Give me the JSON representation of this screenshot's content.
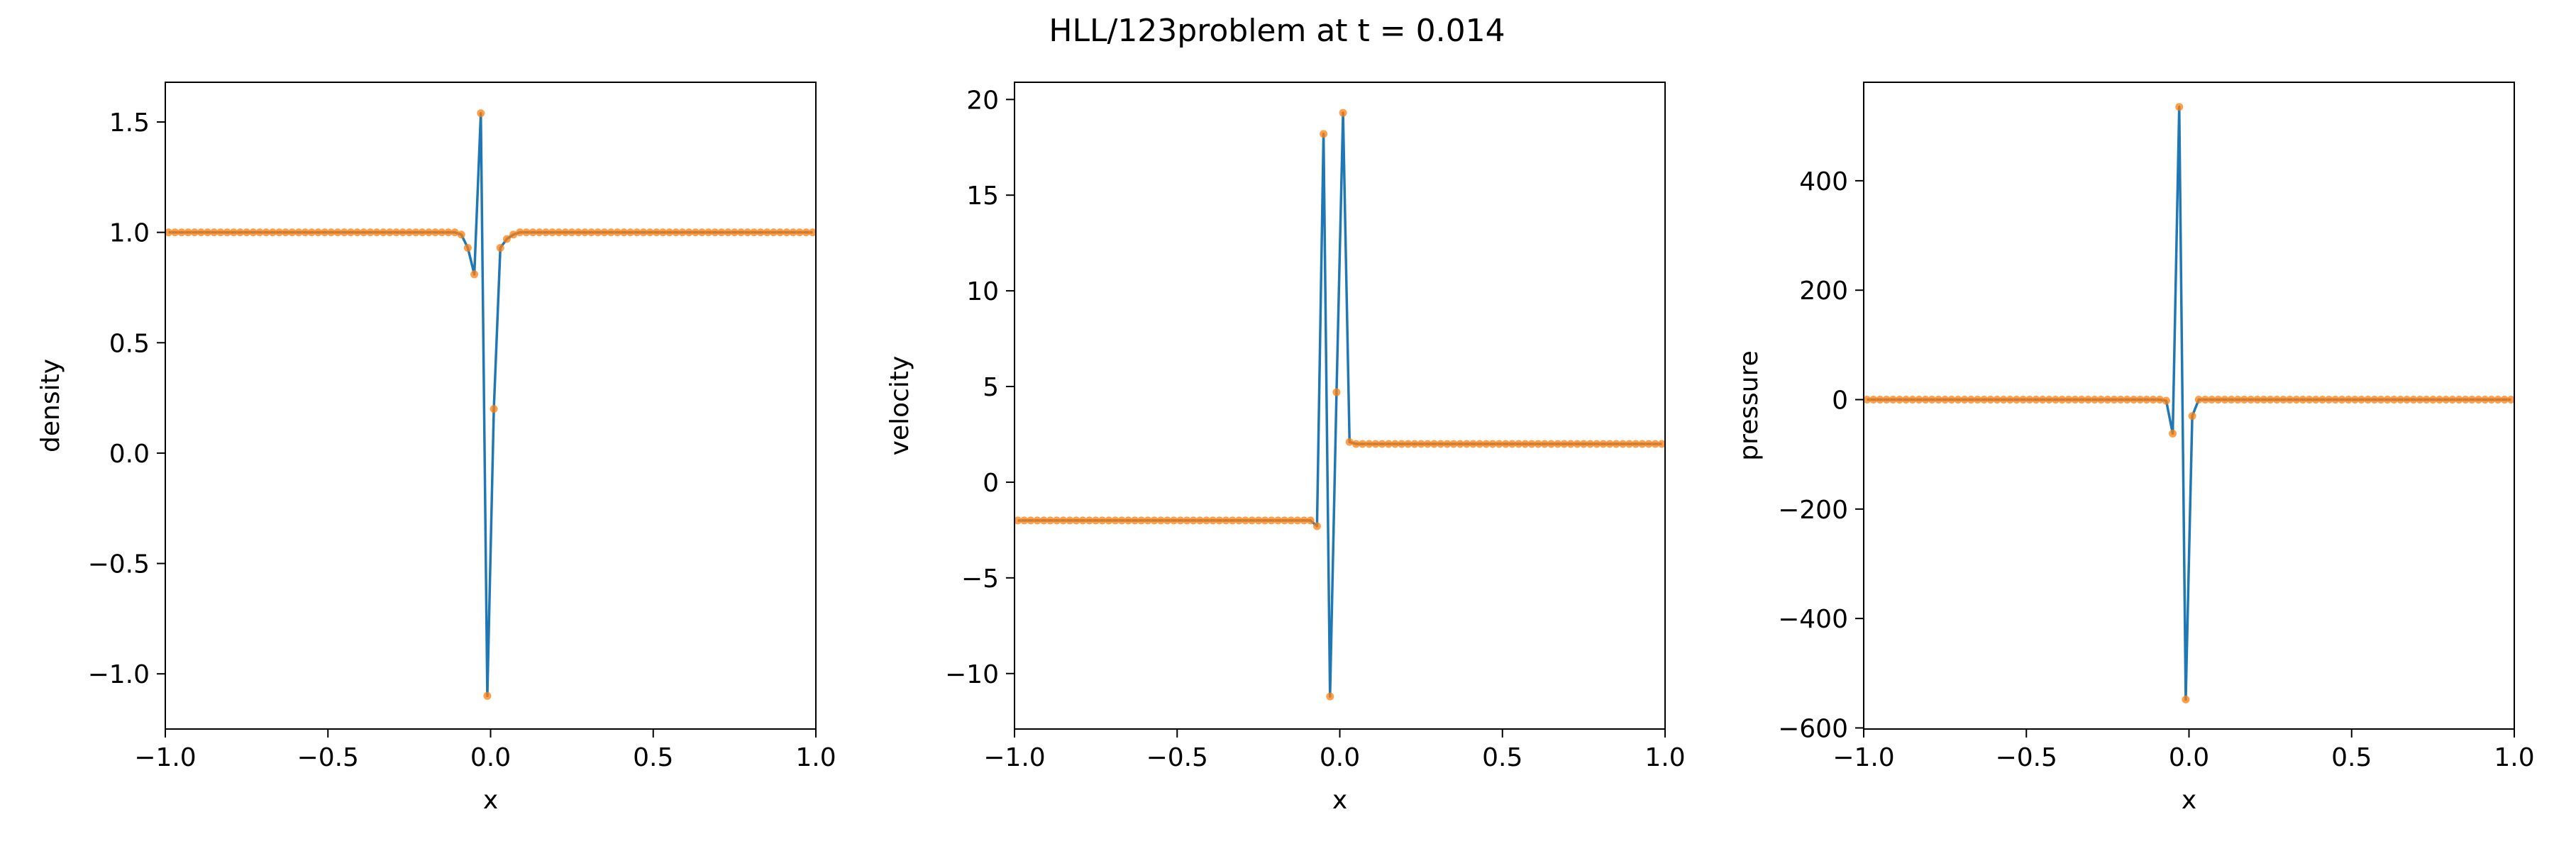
{
  "title": "HLL/123problem at t = 0.014",
  "colors": {
    "line": "#1f77b4",
    "marker": "#ff7f0e",
    "axes": "#000000",
    "background": "#ffffff"
  },
  "chart_data": [
    {
      "type": "line",
      "xlabel": "x",
      "ylabel": "density",
      "xlim": [
        -1.0,
        1.0
      ],
      "ylim": [
        -1.25,
        1.68
      ],
      "xticks": [
        -1.0,
        -0.5,
        0.0,
        0.5,
        1.0
      ],
      "xtick_labels": [
        "−1.0",
        "−0.5",
        "0.0",
        "0.5",
        "1.0"
      ],
      "yticks": [
        -1.0,
        -0.5,
        0.0,
        0.5,
        1.0,
        1.5
      ],
      "ytick_labels": [
        "−1.0",
        "−0.5",
        "0.0",
        "0.5",
        "1.0",
        "1.5"
      ],
      "grid": false,
      "series": [
        {
          "x": [
            -0.99,
            -0.97,
            -0.95,
            -0.93,
            -0.91,
            -0.89,
            -0.87,
            -0.85,
            -0.83,
            -0.81,
            -0.79,
            -0.77,
            -0.75,
            -0.73,
            -0.71,
            -0.69,
            -0.67,
            -0.65,
            -0.63,
            -0.61,
            -0.59,
            -0.57,
            -0.55,
            -0.53,
            -0.51,
            -0.49,
            -0.47,
            -0.45,
            -0.43,
            -0.41,
            -0.39,
            -0.37,
            -0.35,
            -0.33,
            -0.31,
            -0.29,
            -0.27,
            -0.25,
            -0.23,
            -0.21,
            -0.19,
            -0.17,
            -0.15,
            -0.13,
            -0.11,
            -0.09,
            -0.07,
            -0.05,
            -0.03,
            -0.01,
            0.01,
            0.03,
            0.05,
            0.07,
            0.09,
            0.11,
            0.13,
            0.15,
            0.17,
            0.19,
            0.21,
            0.23,
            0.25,
            0.27,
            0.29,
            0.31,
            0.33,
            0.35,
            0.37,
            0.39,
            0.41,
            0.43,
            0.45,
            0.47,
            0.49,
            0.51,
            0.53,
            0.55,
            0.57,
            0.59,
            0.61,
            0.63,
            0.65,
            0.67,
            0.69,
            0.71,
            0.73,
            0.75,
            0.77,
            0.79,
            0.81,
            0.83,
            0.85,
            0.87,
            0.89,
            0.91,
            0.93,
            0.95,
            0.97,
            0.99
          ],
          "y": [
            1,
            1,
            1,
            1,
            1,
            1,
            1,
            1,
            1,
            1,
            1,
            1,
            1,
            1,
            1,
            1,
            1,
            1,
            1,
            1,
            1,
            1,
            1,
            1,
            1,
            1,
            1,
            1,
            1,
            1,
            1,
            1,
            1,
            1,
            1,
            1,
            1,
            1,
            1,
            1,
            1,
            1,
            1,
            1,
            1,
            0.99,
            0.93,
            0.81,
            1.54,
            -1.1,
            0.2,
            0.93,
            0.97,
            0.99,
            1,
            1,
            1,
            1,
            1,
            1,
            1,
            1,
            1,
            1,
            1,
            1,
            1,
            1,
            1,
            1,
            1,
            1,
            1,
            1,
            1,
            1,
            1,
            1,
            1,
            1,
            1,
            1,
            1,
            1,
            1,
            1,
            1,
            1,
            1,
            1,
            1,
            1,
            1,
            1,
            1,
            1,
            1,
            1,
            1,
            1
          ]
        }
      ]
    },
    {
      "type": "line",
      "xlabel": "x",
      "ylabel": "velocity",
      "xlim": [
        -1.0,
        1.0
      ],
      "ylim": [
        -12.9,
        20.9
      ],
      "xticks": [
        -1.0,
        -0.5,
        0.0,
        0.5,
        1.0
      ],
      "xtick_labels": [
        "−1.0",
        "−0.5",
        "0.0",
        "0.5",
        "1.0"
      ],
      "yticks": [
        -10,
        -5,
        0,
        5,
        10,
        15,
        20
      ],
      "ytick_labels": [
        "−10",
        "−5",
        "0",
        "5",
        "10",
        "15",
        "20"
      ],
      "grid": false,
      "series": [
        {
          "x": [
            -0.99,
            -0.97,
            -0.95,
            -0.93,
            -0.91,
            -0.89,
            -0.87,
            -0.85,
            -0.83,
            -0.81,
            -0.79,
            -0.77,
            -0.75,
            -0.73,
            -0.71,
            -0.69,
            -0.67,
            -0.65,
            -0.63,
            -0.61,
            -0.59,
            -0.57,
            -0.55,
            -0.53,
            -0.51,
            -0.49,
            -0.47,
            -0.45,
            -0.43,
            -0.41,
            -0.39,
            -0.37,
            -0.35,
            -0.33,
            -0.31,
            -0.29,
            -0.27,
            -0.25,
            -0.23,
            -0.21,
            -0.19,
            -0.17,
            -0.15,
            -0.13,
            -0.11,
            -0.09,
            -0.07,
            -0.05,
            -0.03,
            -0.01,
            0.01,
            0.03,
            0.05,
            0.07,
            0.09,
            0.11,
            0.13,
            0.15,
            0.17,
            0.19,
            0.21,
            0.23,
            0.25,
            0.27,
            0.29,
            0.31,
            0.33,
            0.35,
            0.37,
            0.39,
            0.41,
            0.43,
            0.45,
            0.47,
            0.49,
            0.51,
            0.53,
            0.55,
            0.57,
            0.59,
            0.61,
            0.63,
            0.65,
            0.67,
            0.69,
            0.71,
            0.73,
            0.75,
            0.77,
            0.79,
            0.81,
            0.83,
            0.85,
            0.87,
            0.89,
            0.91,
            0.93,
            0.95,
            0.97,
            0.99
          ],
          "y": [
            -2,
            -2,
            -2,
            -2,
            -2,
            -2,
            -2,
            -2,
            -2,
            -2,
            -2,
            -2,
            -2,
            -2,
            -2,
            -2,
            -2,
            -2,
            -2,
            -2,
            -2,
            -2,
            -2,
            -2,
            -2,
            -2,
            -2,
            -2,
            -2,
            -2,
            -2,
            -2,
            -2,
            -2,
            -2,
            -2,
            -2,
            -2,
            -2,
            -2,
            -2,
            -2,
            -2,
            -2,
            -2,
            -2,
            -2.3,
            18.2,
            -11.2,
            4.7,
            19.3,
            2.1,
            2,
            2,
            2,
            2,
            2,
            2,
            2,
            2,
            2,
            2,
            2,
            2,
            2,
            2,
            2,
            2,
            2,
            2,
            2,
            2,
            2,
            2,
            2,
            2,
            2,
            2,
            2,
            2,
            2,
            2,
            2,
            2,
            2,
            2,
            2,
            2,
            2,
            2,
            2,
            2,
            2,
            2,
            2,
            2,
            2,
            2,
            2,
            2
          ]
        }
      ]
    },
    {
      "type": "line",
      "xlabel": "x",
      "ylabel": "pressure",
      "xlim": [
        -1.0,
        1.0
      ],
      "ylim": [
        -602,
        580
      ],
      "xticks": [
        -1.0,
        -0.5,
        0.0,
        0.5,
        1.0
      ],
      "xtick_labels": [
        "−1.0",
        "−0.5",
        "0.0",
        "0.5",
        "1.0"
      ],
      "yticks": [
        -600,
        -400,
        -200,
        0,
        200,
        400
      ],
      "ytick_labels": [
        "−600",
        "−400",
        "−200",
        "0",
        "200",
        "400"
      ],
      "grid": false,
      "series": [
        {
          "x": [
            -0.99,
            -0.97,
            -0.95,
            -0.93,
            -0.91,
            -0.89,
            -0.87,
            -0.85,
            -0.83,
            -0.81,
            -0.79,
            -0.77,
            -0.75,
            -0.73,
            -0.71,
            -0.69,
            -0.67,
            -0.65,
            -0.63,
            -0.61,
            -0.59,
            -0.57,
            -0.55,
            -0.53,
            -0.51,
            -0.49,
            -0.47,
            -0.45,
            -0.43,
            -0.41,
            -0.39,
            -0.37,
            -0.35,
            -0.33,
            -0.31,
            -0.29,
            -0.27,
            -0.25,
            -0.23,
            -0.21,
            -0.19,
            -0.17,
            -0.15,
            -0.13,
            -0.11,
            -0.09,
            -0.07,
            -0.05,
            -0.03,
            -0.01,
            0.01,
            0.03,
            0.05,
            0.07,
            0.09,
            0.11,
            0.13,
            0.15,
            0.17,
            0.19,
            0.21,
            0.23,
            0.25,
            0.27,
            0.29,
            0.31,
            0.33,
            0.35,
            0.37,
            0.39,
            0.41,
            0.43,
            0.45,
            0.47,
            0.49,
            0.51,
            0.53,
            0.55,
            0.57,
            0.59,
            0.61,
            0.63,
            0.65,
            0.67,
            0.69,
            0.71,
            0.73,
            0.75,
            0.77,
            0.79,
            0.81,
            0.83,
            0.85,
            0.87,
            0.89,
            0.91,
            0.93,
            0.95,
            0.97,
            0.99
          ],
          "y": [
            0,
            0,
            0,
            0,
            0,
            0,
            0,
            0,
            0,
            0,
            0,
            0,
            0,
            0,
            0,
            0,
            0,
            0,
            0,
            0,
            0,
            0,
            0,
            0,
            0,
            0,
            0,
            0,
            0,
            0,
            0,
            0,
            0,
            0,
            0,
            0,
            0,
            0,
            0,
            0,
            0,
            0,
            0,
            0,
            0,
            0,
            -2,
            -62,
            535,
            -548,
            -30,
            0,
            0,
            0,
            0,
            0,
            0,
            0,
            0,
            0,
            0,
            0,
            0,
            0,
            0,
            0,
            0,
            0,
            0,
            0,
            0,
            0,
            0,
            0,
            0,
            0,
            0,
            0,
            0,
            0,
            0,
            0,
            0,
            0,
            0,
            0,
            0,
            0,
            0,
            0,
            0,
            0,
            0,
            0,
            0,
            0,
            0,
            0,
            0,
            0
          ]
        }
      ]
    }
  ]
}
